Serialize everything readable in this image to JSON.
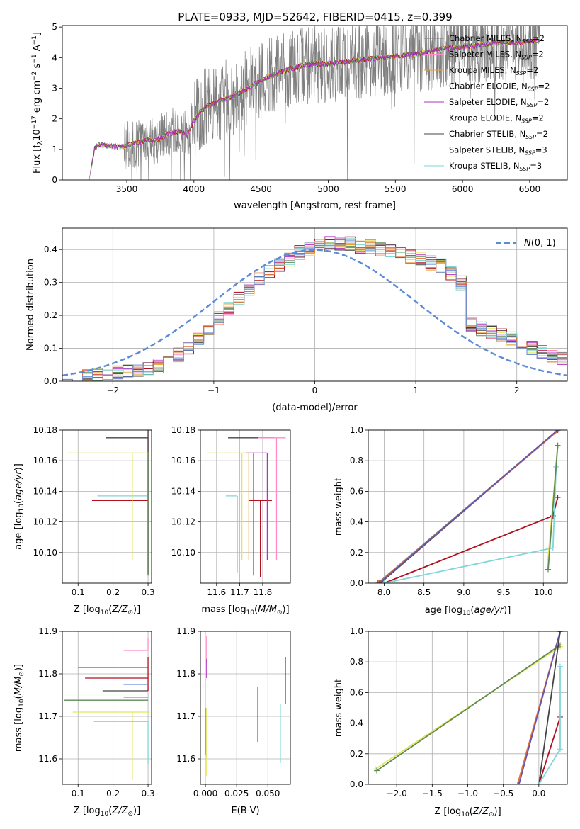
{
  "figure_title": "PLATE=0933, MJD=52642, FIBERID=0415, z=0.399",
  "colors": {
    "Chabrier MILES": "#808080",
    "Salpeter MILES": "#ff8cc6",
    "Kroupa MILES": "#e8a33a",
    "Chabrier ELODIE": "#5f8a55",
    "Salpeter ELODIE": "#b030c0",
    "Kroupa ELODIE": "#e4e65a",
    "Chabrier STELIB": "#444444",
    "Salpeter STELIB": "#b01020",
    "Kroupa STELIB": "#7fd6d8",
    "normal": "#5b8ad6",
    "extra_orange": "#e6703a",
    "extra_blue": "#6a8ed6",
    "extra_lime": "#c8e860",
    "extra_purple": "#6655aa"
  },
  "chart_data": [
    {
      "id": "spectrum",
      "type": "line",
      "xlabel": "wavelength [Angstrom, rest frame]",
      "ylabel": "Flux [f_λ 10^-17 erg cm^-2 s^-1 A^-1]",
      "xlim": [
        3020,
        6780
      ],
      "ylim": [
        0,
        5.05
      ],
      "xticks": [
        3500,
        4000,
        4500,
        5000,
        5500,
        6000,
        6500
      ],
      "yticks": [
        0,
        1,
        2,
        3,
        4,
        5
      ],
      "legend_position": "top-right",
      "legend": [
        {
          "label": "Chabrier MILES, N_SSP=2",
          "name": "Chabrier MILES",
          "nssp": "2"
        },
        {
          "label": "Salpeter MILES, N_SSP=2",
          "name": "Salpeter MILES",
          "nssp": "2"
        },
        {
          "label": "Kroupa MILES, N_SSP=2",
          "name": "Kroupa MILES",
          "nssp": "2"
        },
        {
          "label": "Chabrier ELODIE, N_SSP=2",
          "name": "Chabrier ELODIE",
          "nssp": "2"
        },
        {
          "label": "Salpeter ELODIE, N_SSP=2",
          "name": "Salpeter ELODIE",
          "nssp": "2"
        },
        {
          "label": "Kroupa ELODIE, N_SSP=2",
          "name": "Kroupa ELODIE",
          "nssp": "2"
        },
        {
          "label": "Chabrier STELIB, N_SSP=2",
          "name": "Chabrier STELIB",
          "nssp": "2"
        },
        {
          "label": "Salpeter STELIB, N_SSP=3",
          "name": "Salpeter STELIB",
          "nssp": "3"
        },
        {
          "label": "Kroupa STELIB, N_SSP=3",
          "name": "Kroupa STELIB",
          "nssp": "3"
        }
      ],
      "model_continuum": {
        "x": [
          3220,
          3260,
          3300,
          3350,
          3400,
          3450,
          3500,
          3550,
          3600,
          3650,
          3700,
          3750,
          3800,
          3850,
          3900,
          3950,
          4000,
          4050,
          4100,
          4150,
          4200,
          4300,
          4400,
          4500,
          4600,
          4700,
          4800,
          4900,
          5000,
          5100,
          5200,
          5300,
          5400,
          5500,
          5600,
          5700,
          5800,
          5900,
          6000,
          6100,
          6200,
          6300,
          6400,
          6500,
          6580
        ],
        "y": [
          0.0,
          1.05,
          1.15,
          1.12,
          1.1,
          1.08,
          1.12,
          1.18,
          1.25,
          1.3,
          1.28,
          1.35,
          1.5,
          1.55,
          1.6,
          1.45,
          1.95,
          2.25,
          2.4,
          2.5,
          2.6,
          2.75,
          3.0,
          3.25,
          3.45,
          3.6,
          3.75,
          3.8,
          3.8,
          3.85,
          3.9,
          3.95,
          4.0,
          4.05,
          4.1,
          4.15,
          4.25,
          4.3,
          4.35,
          4.4,
          4.45,
          4.5,
          4.5,
          4.55,
          4.6
        ]
      }
    },
    {
      "id": "residuals",
      "type": "line",
      "xlabel": "(data-model)/error",
      "ylabel": "Normed distribution",
      "xlim": [
        -2.5,
        2.5
      ],
      "ylim": [
        0,
        0.465
      ],
      "xticks": [
        -2,
        -1,
        0,
        1,
        2
      ],
      "yticks": [
        0.0,
        0.1,
        0.2,
        0.3,
        0.4
      ],
      "legend_position": "top-right",
      "legend": [
        {
          "label": "N(0,1)"
        }
      ],
      "histogram_bin_width": 0.1,
      "histogram_template": [
        0.015,
        0.018,
        0.02,
        0.022,
        0.025,
        0.028,
        0.03,
        0.035,
        0.04,
        0.045,
        0.06,
        0.08,
        0.1,
        0.13,
        0.16,
        0.19,
        0.22,
        0.25,
        0.28,
        0.31,
        0.33,
        0.35,
        0.37,
        0.39,
        0.4,
        0.41,
        0.42,
        0.42,
        0.42,
        0.41,
        0.41,
        0.4,
        0.4,
        0.39,
        0.38,
        0.37,
        0.36,
        0.35,
        0.33,
        0.3,
        0.17,
        0.16,
        0.15,
        0.14,
        0.13,
        0.12,
        0.1,
        0.09,
        0.08,
        0.07,
        0.06,
        0.055,
        0.05,
        0.045,
        0.04,
        0.035,
        0.03,
        0.028,
        0.025,
        0.022,
        0.02,
        0.018,
        0.016,
        0.015,
        0.014,
        0.012,
        0.01,
        0.008,
        0.006,
        0.005,
        0.03,
        0.02,
        0.02,
        0.02,
        0.02,
        0.02,
        0.02,
        0.02,
        0.02,
        0.02,
        0.02,
        0.02,
        0.02,
        0.02,
        0.02,
        0.02,
        0.02,
        0.02,
        0.02,
        0.02,
        0.02,
        0.02,
        0.02,
        0.02,
        0.02,
        0.02,
        0.02,
        0.02,
        0.02,
        0.02,
        0.02
      ],
      "histogram_x0": -2.5
    },
    {
      "id": "age_vs_Z",
      "type": "scatter",
      "xlabel": "Z [log10(Z/Z⊙)]",
      "ylabel": "age [log10(age/yr)]",
      "xlim": [
        0.055,
        0.31
      ],
      "ylim": [
        10.08,
        10.18
      ],
      "xticks": [
        0.1,
        0.2,
        0.3
      ],
      "yticks": [
        10.1,
        10.12,
        10.14,
        10.16,
        10.18
      ],
      "points": [
        {
          "name": "Chabrier MILES",
          "x": 0.3,
          "y": 10.165,
          "xerr": [
            0.0,
            0.0
          ],
          "yerr": [
            0.08,
            0.01
          ]
        },
        {
          "name": "Salpeter MILES",
          "x": 0.3,
          "y": 10.175,
          "xerr": [
            0.0,
            0.0
          ],
          "yerr": [
            0.09,
            0.005
          ]
        },
        {
          "name": "Chabrier STELIB",
          "x": 0.3,
          "y": 10.175,
          "xerr": [
            0.12,
            0.0
          ],
          "yerr": [
            0.089,
            0.005
          ]
        },
        {
          "name": "Salpeter STELIB",
          "x": 0.3,
          "y": 10.134,
          "xerr": [
            0.16,
            0.0
          ],
          "yerr": [
            0.0,
            0.0
          ]
        },
        {
          "name": "Kroupa STELIB",
          "x": 0.3,
          "y": 10.137,
          "xerr": [
            0.145,
            0.0
          ],
          "yerr": [
            0.0,
            0.0
          ]
        },
        {
          "name": "Kroupa ELODIE",
          "x": 0.255,
          "y": 10.165,
          "xerr": [
            0.185,
            0.05
          ],
          "yerr": [
            0.07,
            0.0
          ]
        },
        {
          "name": "Chabrier ELODIE",
          "x": 0.3,
          "y": 10.165,
          "xerr": [
            0.0,
            0.0
          ],
          "yerr": [
            0.08,
            0.0
          ]
        }
      ]
    },
    {
      "id": "age_vs_mass",
      "type": "scatter",
      "xlabel": "mass [log10(M/M⊙)]",
      "ylabel": "",
      "xlim": [
        11.53,
        11.92
      ],
      "ylim": [
        10.08,
        10.18
      ],
      "xticks": [
        11.6,
        11.7,
        11.8
      ],
      "yticks": [
        10.1,
        10.12,
        10.14,
        10.16,
        10.18
      ],
      "points": [
        {
          "name": "Kroupa ELODIE",
          "x": 11.71,
          "y": 10.165,
          "xerr": [
            0.15,
            0.0
          ],
          "yerr": [
            0.0,
            0.0
          ]
        },
        {
          "name": "Kroupa STELIB",
          "x": 11.69,
          "y": 10.137,
          "xerr": [
            0.05,
            0.0
          ],
          "yerr": [
            0.05,
            0.0
          ]
        },
        {
          "name": "Kroupa ELODIE",
          "x": 11.71,
          "y": 10.165,
          "xerr": [
            0.0,
            0.03
          ],
          "yerr": [
            0.07,
            0.0
          ]
        },
        {
          "name": "Kroupa MILES",
          "x": 11.74,
          "y": 10.165,
          "xerr": [
            0.0,
            0.0
          ],
          "yerr": [
            0.07,
            0.0
          ]
        },
        {
          "name": "Chabrier ELODIE",
          "x": 11.76,
          "y": 10.165,
          "xerr": [
            0.0,
            0.0
          ],
          "yerr": [
            0.08,
            0.0
          ]
        },
        {
          "name": "Chabrier STELIB",
          "x": 11.77,
          "y": 10.175,
          "xerr": [
            0.12,
            0.08
          ],
          "yerr": [
            0.0,
            0.0
          ]
        },
        {
          "name": "Salpeter STELIB",
          "x": 11.79,
          "y": 10.134,
          "xerr": [
            0.05,
            0.05
          ],
          "yerr": [
            0.05,
            0.0
          ]
        },
        {
          "name": "Salpeter ELODIE",
          "x": 11.82,
          "y": 10.165,
          "xerr": [
            0.09,
            0.0
          ],
          "yerr": [
            0.07,
            0.0
          ]
        },
        {
          "name": "Salpeter MILES",
          "x": 11.86,
          "y": 10.175,
          "xerr": [
            0.08,
            0.04
          ],
          "yerr": [
            0.08,
            0.0
          ]
        }
      ]
    },
    {
      "id": "weight_vs_age",
      "type": "line",
      "xlabel": "age [log10(age/yr)]",
      "ylabel": "mass weight",
      "xlim": [
        7.8,
        10.3
      ],
      "ylim": [
        0.0,
        1.0
      ],
      "xticks": [
        8.0,
        8.5,
        9.0,
        9.5,
        10.0
      ],
      "yticks": [
        0.0,
        0.2,
        0.4,
        0.6,
        0.8,
        1.0
      ],
      "series": [
        {
          "name": "Chabrier MILES",
          "x": [
            7.92,
            10.18
          ],
          "y": [
            0.0,
            1.0
          ]
        },
        {
          "name": "Chabrier STELIB",
          "x": [
            7.95,
            10.18
          ],
          "y": [
            0.0,
            1.0
          ]
        },
        {
          "name": "extra_orange",
          "x": [
            7.93,
            10.17
          ],
          "y": [
            0.0,
            0.99
          ]
        },
        {
          "name": "extra_purple",
          "x": [
            7.94,
            10.18
          ],
          "y": [
            0.0,
            1.0
          ]
        },
        {
          "name": "Salpeter STELIB",
          "x": [
            8.0,
            10.12,
            10.18
          ],
          "y": [
            0.0,
            0.44,
            0.56
          ]
        },
        {
          "name": "Kroupa STELIB",
          "x": [
            8.0,
            10.12,
            10.16,
            10.18
          ],
          "y": [
            0.0,
            0.23,
            0.76,
            0.9
          ]
        },
        {
          "name": "Kroupa ELODIE",
          "x": [
            10.05,
            10.18
          ],
          "y": [
            0.1,
            0.9
          ]
        },
        {
          "name": "Chabrier ELODIE",
          "x": [
            10.06,
            10.18
          ],
          "y": [
            0.09,
            0.9
          ]
        }
      ]
    },
    {
      "id": "mass_vs_Z",
      "type": "scatter",
      "xlabel": "Z [log10(Z/Z⊙)]",
      "ylabel": "mass [log10(M/M⊙)]",
      "xlim": [
        0.055,
        0.31
      ],
      "ylim": [
        11.54,
        11.9
      ],
      "xticks": [
        0.1,
        0.2,
        0.3
      ],
      "yticks": [
        11.6,
        11.7,
        11.8,
        11.9
      ],
      "points": [
        {
          "name": "Salpeter MILES",
          "x": 0.3,
          "y": 11.855,
          "xerr": [
            0.07,
            0.0
          ],
          "yerr": [
            0.0,
            0.03
          ]
        },
        {
          "name": "Salpeter ELODIE",
          "x": 0.3,
          "y": 11.815,
          "xerr": [
            0.2,
            0.0
          ],
          "yerr": [
            0.0,
            0.0
          ]
        },
        {
          "name": "Salpeter STELIB",
          "x": 0.3,
          "y": 11.79,
          "xerr": [
            0.18,
            0.0
          ],
          "yerr": [
            0.03,
            0.05
          ]
        },
        {
          "name": "extra_blue",
          "x": 0.3,
          "y": 11.775,
          "xerr": [
            0.07,
            0.0
          ],
          "yerr": [
            0.0,
            0.0
          ]
        },
        {
          "name": "Chabrier STELIB",
          "x": 0.3,
          "y": 11.76,
          "xerr": [
            0.13,
            0.0
          ],
          "yerr": [
            0.0,
            0.0
          ]
        },
        {
          "name": "extra_orange",
          "x": 0.3,
          "y": 11.745,
          "xerr": [
            0.07,
            0.0
          ],
          "yerr": [
            0.0,
            0.0
          ]
        },
        {
          "name": "Chabrier ELODIE",
          "x": 0.3,
          "y": 11.738,
          "xerr": [
            0.24,
            0.0
          ],
          "yerr": [
            0.0,
            0.0
          ]
        },
        {
          "name": "Kroupa ELODIE",
          "x": 0.255,
          "y": 11.71,
          "xerr": [
            0.17,
            0.05
          ],
          "yerr": [
            0.16,
            0.0
          ]
        },
        {
          "name": "Kroupa STELIB",
          "x": 0.3,
          "y": 11.688,
          "xerr": [
            0.155,
            0.0
          ],
          "yerr": [
            0.1,
            0.0
          ]
        }
      ]
    },
    {
      "id": "mass_vs_ebv",
      "type": "scatter",
      "xlabel": "E(B-V)",
      "ylabel": "",
      "xlim": [
        -0.004,
        0.068
      ],
      "ylim": [
        11.54,
        11.9
      ],
      "xticks": [
        0.0,
        0.025,
        0.05
      ],
      "xticklabels": [
        "0.000",
        "0.025",
        "0.050"
      ],
      "yticks": [
        11.6,
        11.7,
        11.8,
        11.9
      ],
      "points": [
        {
          "name": "Salpeter MILES",
          "x": 0.001,
          "y": 11.855,
          "xerr": [
            0.0,
            0.0
          ],
          "yerr": [
            0.03,
            0.035
          ]
        },
        {
          "name": "Salpeter ELODIE",
          "x": 0.001,
          "y": 11.815,
          "xerr": [
            0.0,
            0.0
          ],
          "yerr": [
            0.025,
            0.02
          ]
        },
        {
          "name": "Kroupa ELODIE",
          "x": 0.001,
          "y": 11.71,
          "xerr": [
            0.0,
            0.0
          ],
          "yerr": [
            0.15,
            0.01
          ]
        },
        {
          "name": "Chabrier MILES",
          "x": 0.0,
          "y": 11.66,
          "xerr": [
            0.0,
            0.0
          ],
          "yerr": [
            0.05,
            0.06
          ]
        },
        {
          "name": "Chabrier STELIB",
          "x": 0.042,
          "y": 11.705,
          "xerr": [
            0.0,
            0.0
          ],
          "yerr": [
            0.065,
            0.065
          ]
        },
        {
          "name": "Kroupa STELIB",
          "x": 0.06,
          "y": 11.66,
          "xerr": [
            0.0,
            0.0
          ],
          "yerr": [
            0.07,
            0.07
          ]
        },
        {
          "name": "Salpeter STELIB",
          "x": 0.064,
          "y": 11.77,
          "xerr": [
            0.0,
            0.0
          ],
          "yerr": [
            0.04,
            0.07
          ]
        }
      ]
    },
    {
      "id": "weight_vs_Z",
      "type": "line",
      "xlabel": "Z [log10(Z/Z⊙)]",
      "ylabel": "mass weight",
      "xlim": [
        -2.4,
        0.4
      ],
      "ylim": [
        0.0,
        1.0
      ],
      "xticks": [
        -2.0,
        -1.5,
        -1.0,
        -0.5,
        0.0
      ],
      "yticks": [
        0.0,
        0.2,
        0.4,
        0.6,
        0.8,
        1.0
      ],
      "series": [
        {
          "name": "Kroupa ELODIE",
          "x": [
            -2.3,
            0.3
          ],
          "y": [
            0.1,
            0.9
          ]
        },
        {
          "name": "Chabrier ELODIE",
          "x": [
            -2.28,
            0.3
          ],
          "y": [
            0.09,
            0.91
          ]
        },
        {
          "name": "extra_orange",
          "x": [
            -0.3,
            0.3
          ],
          "y": [
            0.0,
            1.0
          ]
        },
        {
          "name": "extra_purple",
          "x": [
            -0.28,
            0.3
          ],
          "y": [
            0.0,
            1.0
          ]
        },
        {
          "name": "Chabrier STELIB",
          "x": [
            0.0,
            0.3
          ],
          "y": [
            0.0,
            1.0
          ]
        },
        {
          "name": "Salpeter STELIB",
          "x": [
            0.0,
            0.3
          ],
          "y": [
            0.0,
            0.44
          ]
        },
        {
          "name": "Kroupa STELIB",
          "x": [
            0.0,
            0.3,
            0.3
          ],
          "y": [
            0.0,
            0.23,
            0.77
          ]
        }
      ]
    }
  ]
}
